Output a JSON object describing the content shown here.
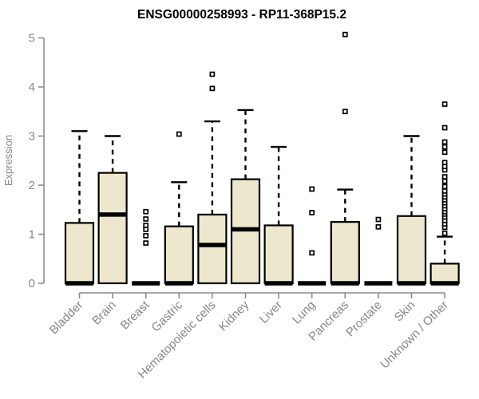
{
  "chart_data": {
    "type": "boxplot",
    "title": "ENSG00000258993 - RP11-368P15.2",
    "ylabel": "Expression",
    "xlabel": "",
    "ylim": [
      0,
      5
    ],
    "yticks": [
      0,
      1,
      2,
      3,
      4,
      5
    ],
    "grid": false,
    "legend": "none",
    "colors": {
      "box_fill": "#EDE8CD",
      "box_stroke": "#000000",
      "median": "#000000",
      "whisker": "#000000",
      "outlier_stroke": "#000000",
      "outlier_fill": "#ffffff",
      "axis": "#8c8c8c",
      "labels": "#878787",
      "background": "#ffffff"
    },
    "categories": [
      "Bladder",
      "Brain",
      "Breast",
      "Gastric",
      "Hematopoietic cells",
      "Kidney",
      "Liver",
      "Lung",
      "Pancreas",
      "Prostate",
      "Skin",
      "Unknown / Other"
    ],
    "series": [
      {
        "category": "Bladder",
        "q1": 0,
        "median": 0,
        "q3": 1.23,
        "whisker_low": 0,
        "whisker_high": 3.1,
        "outliers": []
      },
      {
        "category": "Brain",
        "q1": 0,
        "median": 1.4,
        "q3": 2.25,
        "whisker_low": 0,
        "whisker_high": 3.0,
        "outliers": []
      },
      {
        "category": "Breast",
        "q1": 0,
        "median": 0,
        "q3": 0,
        "whisker_low": 0,
        "whisker_high": 0,
        "outliers": [
          0.82,
          0.97,
          1.1,
          1.18,
          1.31,
          1.46
        ]
      },
      {
        "category": "Gastric",
        "q1": 0,
        "median": 0,
        "q3": 1.16,
        "whisker_low": 0,
        "whisker_high": 2.06,
        "outliers": [
          3.04
        ]
      },
      {
        "category": "Hematopoietic cells",
        "q1": 0,
        "median": 0.78,
        "q3": 1.4,
        "whisker_low": 0,
        "whisker_high": 3.3,
        "outliers": [
          3.97,
          4.26
        ]
      },
      {
        "category": "Kidney",
        "q1": 0,
        "median": 1.1,
        "q3": 2.12,
        "whisker_low": 0,
        "whisker_high": 3.53,
        "outliers": []
      },
      {
        "category": "Liver",
        "q1": 0,
        "median": 0,
        "q3": 1.18,
        "whisker_low": 0,
        "whisker_high": 2.78,
        "outliers": []
      },
      {
        "category": "Lung",
        "q1": 0,
        "median": 0,
        "q3": 0,
        "whisker_low": 0,
        "whisker_high": 0,
        "outliers": [
          0.62,
          1.44,
          1.92
        ]
      },
      {
        "category": "Pancreas",
        "q1": 0,
        "median": 0,
        "q3": 1.25,
        "whisker_low": 0,
        "whisker_high": 1.91,
        "outliers": [
          3.5,
          5.07
        ]
      },
      {
        "category": "Prostate",
        "q1": 0,
        "median": 0,
        "q3": 0,
        "whisker_low": 0,
        "whisker_high": 0,
        "outliers": [
          1.15,
          1.3
        ]
      },
      {
        "category": "Skin",
        "q1": 0,
        "median": 0,
        "q3": 1.37,
        "whisker_low": 0,
        "whisker_high": 3.0,
        "outliers": []
      },
      {
        "category": "Unknown / Other",
        "q1": 0,
        "median": 0,
        "q3": 0.4,
        "whisker_low": 0,
        "whisker_high": 0.95,
        "outliers": [
          1.02,
          1.14,
          1.21,
          1.28,
          1.35,
          1.41,
          1.46,
          1.52,
          1.58,
          1.64,
          1.7,
          1.76,
          1.82,
          1.88,
          1.97,
          2.08,
          2.17,
          2.31,
          2.38,
          2.46,
          2.67,
          2.78,
          2.88,
          3.17,
          3.65
        ]
      }
    ]
  }
}
